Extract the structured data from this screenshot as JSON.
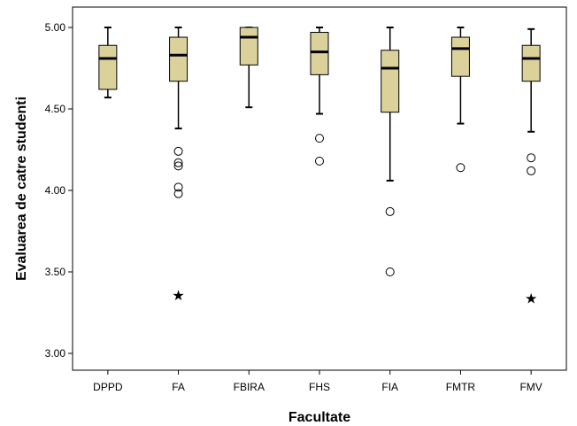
{
  "chart_data": {
    "type": "boxplot",
    "title": "",
    "xlabel": "Facultate",
    "ylabel": "Evaluarea de catre studenti",
    "ylim": [
      2.95,
      5.05
    ],
    "yticks": [
      "3.00",
      "3.50",
      "4.00",
      "4.50",
      "5.00"
    ],
    "grid": false,
    "legend": "none",
    "box_color": "#dbd29b",
    "categories": [
      "DPPD",
      "FA",
      "FBIRA",
      "FHS",
      "FIA",
      "FMTR",
      "FMV"
    ],
    "boxes": [
      {
        "category": "DPPD",
        "whisker_low": 4.57,
        "q1": 4.62,
        "median": 4.81,
        "q3": 4.89,
        "whisker_high": 5.0,
        "outliers": [],
        "extremes": []
      },
      {
        "category": "FA",
        "whisker_low": 4.38,
        "q1": 4.67,
        "median": 4.83,
        "q3": 4.94,
        "whisker_high": 5.0,
        "outliers": [
          4.24,
          4.17,
          4.15,
          4.02,
          3.98
        ],
        "extremes": [
          3.36
        ]
      },
      {
        "category": "FBIRA",
        "whisker_low": 4.51,
        "q1": 4.77,
        "median": 4.94,
        "q3": 5.0,
        "whisker_high": 5.0,
        "outliers": [],
        "extremes": []
      },
      {
        "category": "FHS",
        "whisker_low": 4.47,
        "q1": 4.71,
        "median": 4.85,
        "q3": 4.97,
        "whisker_high": 5.0,
        "outliers": [
          4.32,
          4.18
        ],
        "extremes": []
      },
      {
        "category": "FIA",
        "whisker_low": 4.06,
        "q1": 4.48,
        "median": 4.75,
        "q3": 4.86,
        "whisker_high": 5.0,
        "outliers": [
          3.87,
          3.5
        ],
        "extremes": []
      },
      {
        "category": "FMTR",
        "whisker_low": 4.41,
        "q1": 4.7,
        "median": 4.87,
        "q3": 4.94,
        "whisker_high": 5.0,
        "outliers": [
          4.14
        ],
        "extremes": []
      },
      {
        "category": "FMV",
        "whisker_low": 4.36,
        "q1": 4.67,
        "median": 4.81,
        "q3": 4.89,
        "whisker_high": 4.99,
        "outliers": [
          4.2,
          4.12
        ],
        "extremes": [
          3.34
        ]
      }
    ]
  }
}
